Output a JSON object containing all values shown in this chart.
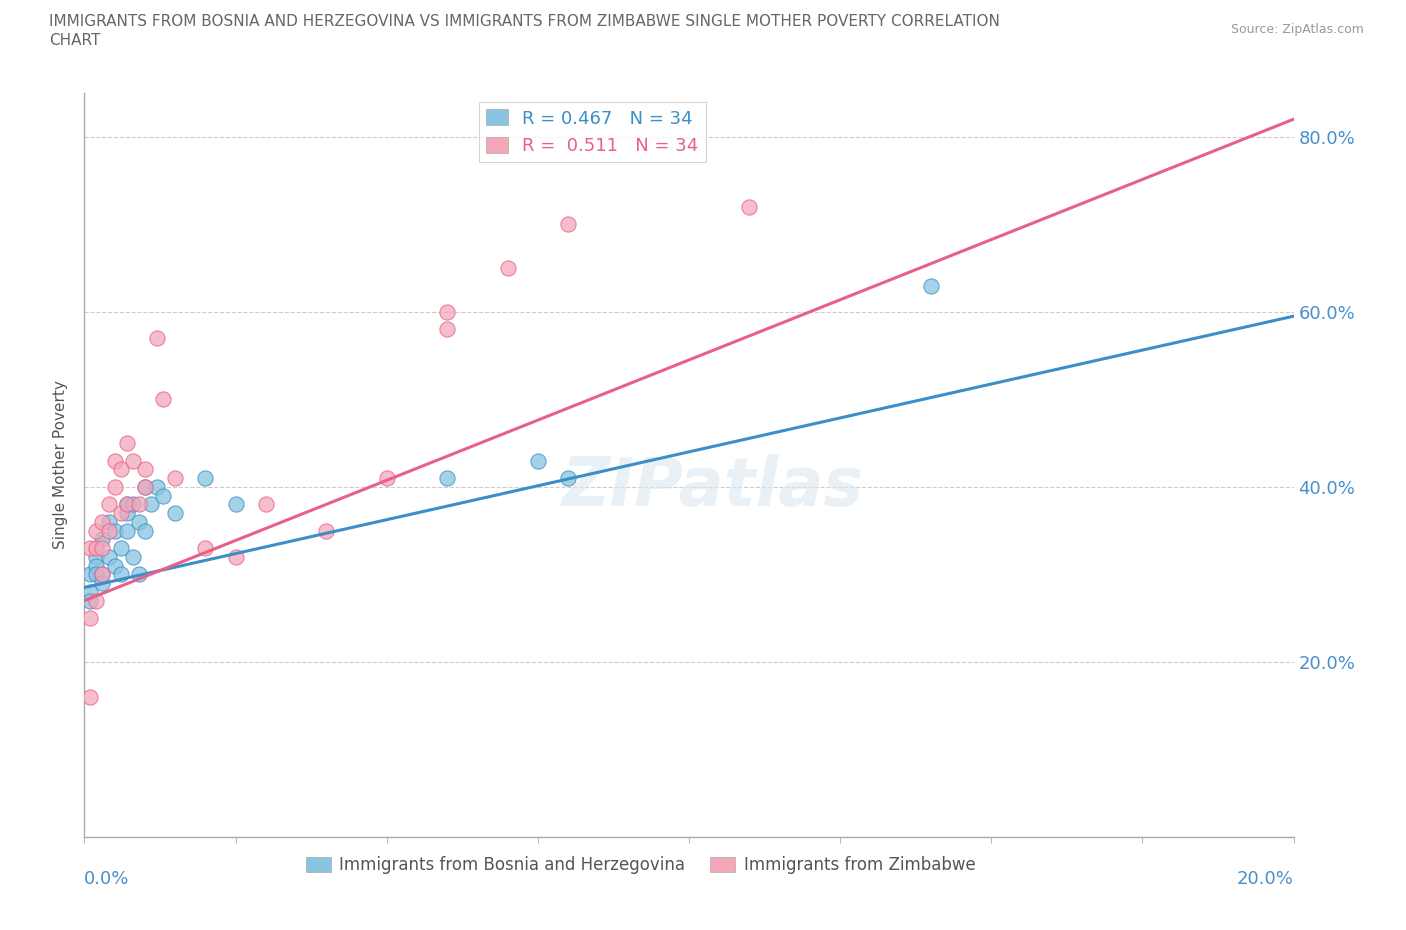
{
  "title_line1": "IMMIGRANTS FROM BOSNIA AND HERZEGOVINA VS IMMIGRANTS FROM ZIMBABWE SINGLE MOTHER POVERTY CORRELATION",
  "title_line2": "CHART",
  "source": "Source: ZipAtlas.com",
  "ylabel": "Single Mother Poverty",
  "y_ticks": [
    0.0,
    0.2,
    0.4,
    0.6,
    0.8
  ],
  "y_tick_labels": [
    "",
    "20.0%",
    "40.0%",
    "60.0%",
    "80.0%"
  ],
  "x_range": [
    0.0,
    0.2
  ],
  "y_range": [
    0.0,
    0.85
  ],
  "r_bosnia": 0.467,
  "n_bosnia": 34,
  "r_zimbabwe": 0.511,
  "n_zimbabwe": 34,
  "color_bosnia": "#89c4e1",
  "color_zimbabwe": "#f4a7b9",
  "color_line_bosnia": "#3a8fc7",
  "color_line_zimbabwe": "#e8608a",
  "watermark": "ZIPatlas",
  "bosnia_x": [
    0.001,
    0.001,
    0.001,
    0.002,
    0.002,
    0.002,
    0.003,
    0.003,
    0.003,
    0.004,
    0.004,
    0.005,
    0.005,
    0.006,
    0.006,
    0.007,
    0.007,
    0.007,
    0.008,
    0.008,
    0.009,
    0.009,
    0.01,
    0.01,
    0.011,
    0.012,
    0.013,
    0.015,
    0.02,
    0.025,
    0.06,
    0.075,
    0.08,
    0.14
  ],
  "bosnia_y": [
    0.3,
    0.28,
    0.27,
    0.32,
    0.31,
    0.3,
    0.34,
    0.3,
    0.29,
    0.36,
    0.32,
    0.35,
    0.31,
    0.33,
    0.3,
    0.38,
    0.37,
    0.35,
    0.38,
    0.32,
    0.36,
    0.3,
    0.4,
    0.35,
    0.38,
    0.4,
    0.39,
    0.37,
    0.41,
    0.38,
    0.41,
    0.43,
    0.41,
    0.63
  ],
  "zimbabwe_x": [
    0.001,
    0.001,
    0.001,
    0.002,
    0.002,
    0.002,
    0.003,
    0.003,
    0.003,
    0.004,
    0.004,
    0.005,
    0.005,
    0.006,
    0.006,
    0.007,
    0.007,
    0.008,
    0.009,
    0.01,
    0.01,
    0.012,
    0.013,
    0.015,
    0.02,
    0.025,
    0.03,
    0.04,
    0.05,
    0.06,
    0.06,
    0.07,
    0.08,
    0.11
  ],
  "zimbabwe_y": [
    0.16,
    0.25,
    0.33,
    0.27,
    0.33,
    0.35,
    0.3,
    0.33,
    0.36,
    0.35,
    0.38,
    0.4,
    0.43,
    0.37,
    0.42,
    0.45,
    0.38,
    0.43,
    0.38,
    0.42,
    0.4,
    0.57,
    0.5,
    0.41,
    0.33,
    0.32,
    0.38,
    0.35,
    0.41,
    0.6,
    0.58,
    0.65,
    0.7,
    0.72
  ],
  "line_bosnia_x0": 0.0,
  "line_bosnia_y0": 0.285,
  "line_bosnia_x1": 0.2,
  "line_bosnia_y1": 0.595,
  "line_zimbabwe_x0": 0.0,
  "line_zimbabwe_y0": 0.27,
  "line_zimbabwe_x1": 0.2,
  "line_zimbabwe_y1": 0.82
}
